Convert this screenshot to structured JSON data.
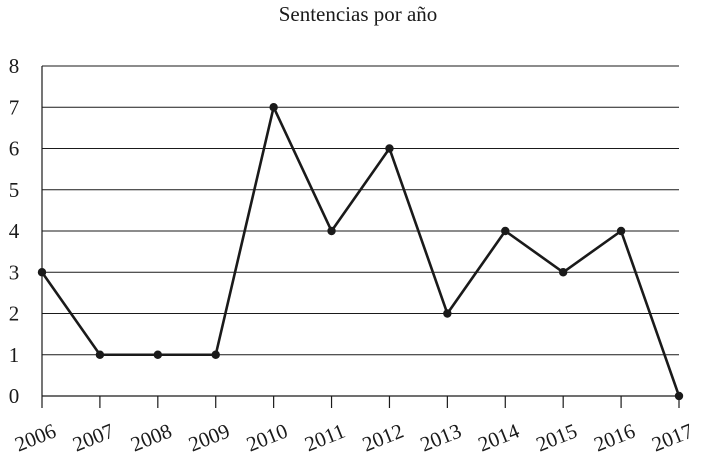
{
  "chart_data": {
    "type": "line",
    "title": "Sentencias por año",
    "xlabel": "",
    "ylabel": "",
    "categories": [
      "2006",
      "2007",
      "2008",
      "2009",
      "2010",
      "2011",
      "2012",
      "2013",
      "2014",
      "2015",
      "2016",
      "2017"
    ],
    "values": [
      3,
      1,
      1,
      1,
      7,
      4,
      6,
      2,
      4,
      3,
      4,
      0
    ],
    "y_ticks": [
      "0",
      "1",
      "2",
      "3",
      "4",
      "5",
      "6",
      "7",
      "8"
    ],
    "ylim": [
      0,
      8
    ],
    "grid": true,
    "legend": "none",
    "colors": {
      "line": "#1a1a1a",
      "grid": "#1a1a1a"
    }
  }
}
